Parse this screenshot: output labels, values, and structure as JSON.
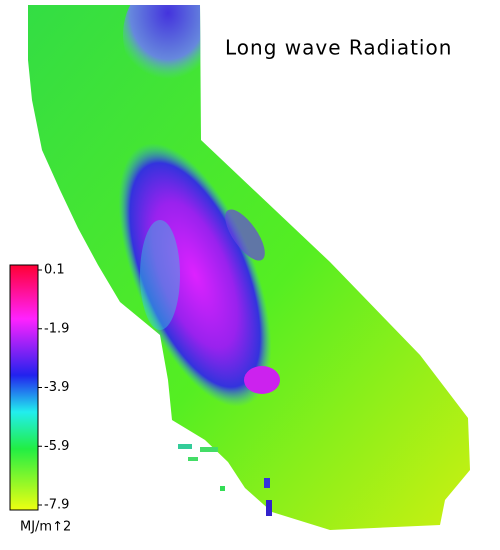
{
  "title": "Long wave Radiation",
  "colorbar": {
    "lim": [
      -7.9,
      0.1
    ],
    "ticks": [
      0.1,
      -1.9,
      -3.9,
      -5.9,
      -7.9
    ],
    "unit": "MJ/m↑2"
  }
}
